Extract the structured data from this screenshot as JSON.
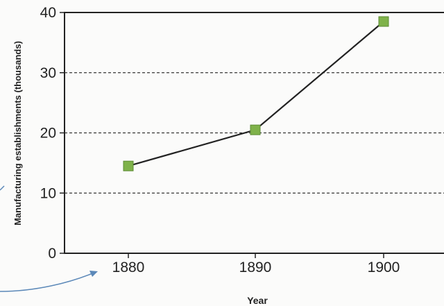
{
  "chart_data": {
    "type": "line",
    "xlabel": "Year",
    "ylabel": "Manufacturing establishments (thousands)",
    "categories": [
      "1880",
      "1890",
      "1900"
    ],
    "series": [
      {
        "values": [
          14.5,
          20.5,
          38.5
        ]
      }
    ],
    "ylim": [
      0,
      40
    ],
    "yticks": [
      "0",
      "10",
      "20",
      "30",
      "40"
    ],
    "grid": "horizontal dashed lines at 10, 20, 30",
    "colors": {
      "line": "#222222",
      "marker": "#7fb24a",
      "marker_edge": "#5d8c35",
      "annotation_arrow": "#5b88b8"
    }
  }
}
